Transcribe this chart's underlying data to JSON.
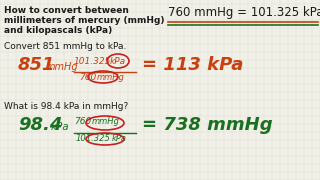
{
  "bg_color": "#f0f0e8",
  "grid_color": "#d8d8c8",
  "title_lines": [
    "How to convert between",
    "millimeters of mercury (mmHg)",
    "and kilopascals (kPa)"
  ],
  "conversion_fact": "760 mmHg = 101.325 kPa",
  "problem1_label": "Convert 851 mmHg to kPa.",
  "problem2_label": "What is 98.4 kPa in mmHg?",
  "color_orange": "#c84010",
  "color_green": "#1a7020",
  "color_red_ellipse": "#c82020",
  "color_black": "#1a1a1a",
  "color_underline_orange": "#c84010",
  "color_underline_green": "#1a7020"
}
